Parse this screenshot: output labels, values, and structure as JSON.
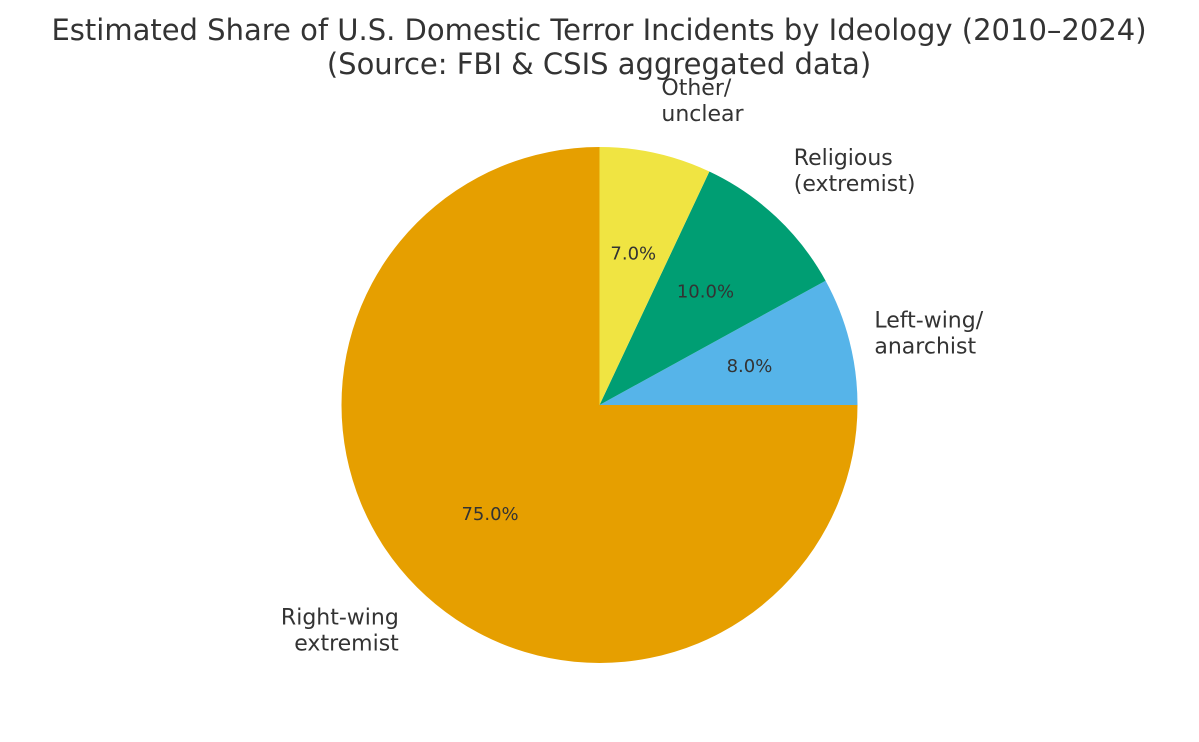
{
  "chart_data": {
    "type": "pie",
    "title_lines": [
      "Estimated Share of U.S. Domestic Terror Incidents by Ideology (2010–2024)",
      "(Source: FBI & CSIS aggregated data)"
    ],
    "start_angle_deg": 0,
    "direction": "counterclockwise",
    "slices": [
      {
        "label_lines": [
          "Left-wing/",
          "anarchist"
        ],
        "value": 8.0,
        "pct_label": "8.0%",
        "color": "#56B4E9"
      },
      {
        "label_lines": [
          "Religious",
          "(extremist)"
        ],
        "value": 10.0,
        "pct_label": "10.0%",
        "color": "#009E73"
      },
      {
        "label_lines": [
          "Other/",
          "unclear"
        ],
        "value": 7.0,
        "pct_label": "7.0%",
        "color": "#F0E442"
      },
      {
        "label_lines": [
          "Right-wing",
          "extremist"
        ],
        "value": 75.0,
        "pct_label": "75.0%",
        "color": "#E69F00"
      }
    ]
  }
}
